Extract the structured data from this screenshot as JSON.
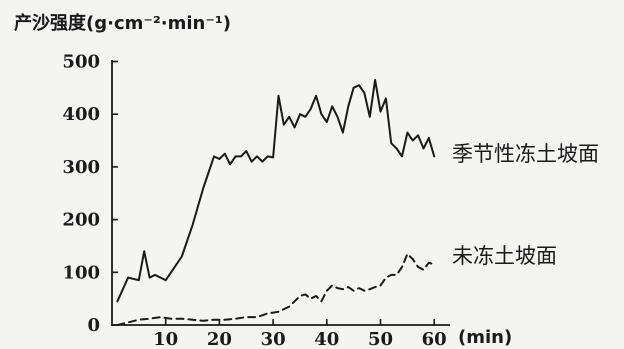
{
  "chart_data": {
    "type": "line",
    "ylabel": "产沙强度(g·cm⁻²·min⁻¹)",
    "xlabel": "(min)",
    "xlim": [
      0,
      62
    ],
    "ylim": [
      0,
      500
    ],
    "x_ticks": [
      "0",
      "10",
      "20",
      "30",
      "40",
      "50",
      "60"
    ],
    "y_ticks": [
      "500",
      "400",
      "300",
      "200",
      "100",
      "0"
    ],
    "grid": false,
    "series": [
      {
        "name": "季节性冻土坡面",
        "style": "solid",
        "x": [
          1,
          3,
          5,
          6,
          7,
          8,
          10,
          11,
          13,
          15,
          17,
          19,
          20,
          21,
          22,
          23,
          24,
          25,
          26,
          27,
          28,
          29,
          30,
          31,
          32,
          33,
          34,
          35,
          36,
          37,
          38,
          39,
          40,
          41,
          42,
          43,
          44,
          45,
          46,
          47,
          48,
          49,
          50,
          51,
          52,
          53,
          54,
          55,
          56,
          57,
          58,
          59,
          60
        ],
        "values": [
          45,
          90,
          85,
          140,
          90,
          95,
          85,
          100,
          130,
          190,
          260,
          320,
          315,
          325,
          305,
          320,
          320,
          330,
          310,
          320,
          310,
          320,
          318,
          435,
          380,
          395,
          375,
          400,
          395,
          410,
          435,
          400,
          385,
          415,
          395,
          365,
          415,
          450,
          455,
          440,
          395,
          465,
          405,
          430,
          345,
          335,
          320,
          365,
          350,
          360,
          335,
          355,
          320
        ]
      },
      {
        "name": "未冻土坡面",
        "style": "dashed",
        "x": [
          1,
          3,
          5,
          7,
          9,
          11,
          13,
          15,
          17,
          19,
          21,
          23,
          25,
          27,
          29,
          31,
          33,
          34,
          35,
          36,
          37,
          38,
          39,
          40,
          41,
          42,
          43,
          44,
          45,
          46,
          47,
          48,
          49,
          50,
          51,
          52,
          53,
          54,
          55,
          56,
          57,
          58,
          59,
          60
        ],
        "values": [
          0,
          5,
          10,
          12,
          15,
          12,
          12,
          10,
          8,
          10,
          10,
          12,
          15,
          15,
          22,
          25,
          35,
          45,
          55,
          58,
          50,
          55,
          45,
          65,
          75,
          70,
          68,
          72,
          65,
          70,
          65,
          68,
          72,
          75,
          90,
          95,
          95,
          110,
          135,
          125,
          110,
          105,
          118,
          115
        ]
      }
    ]
  }
}
